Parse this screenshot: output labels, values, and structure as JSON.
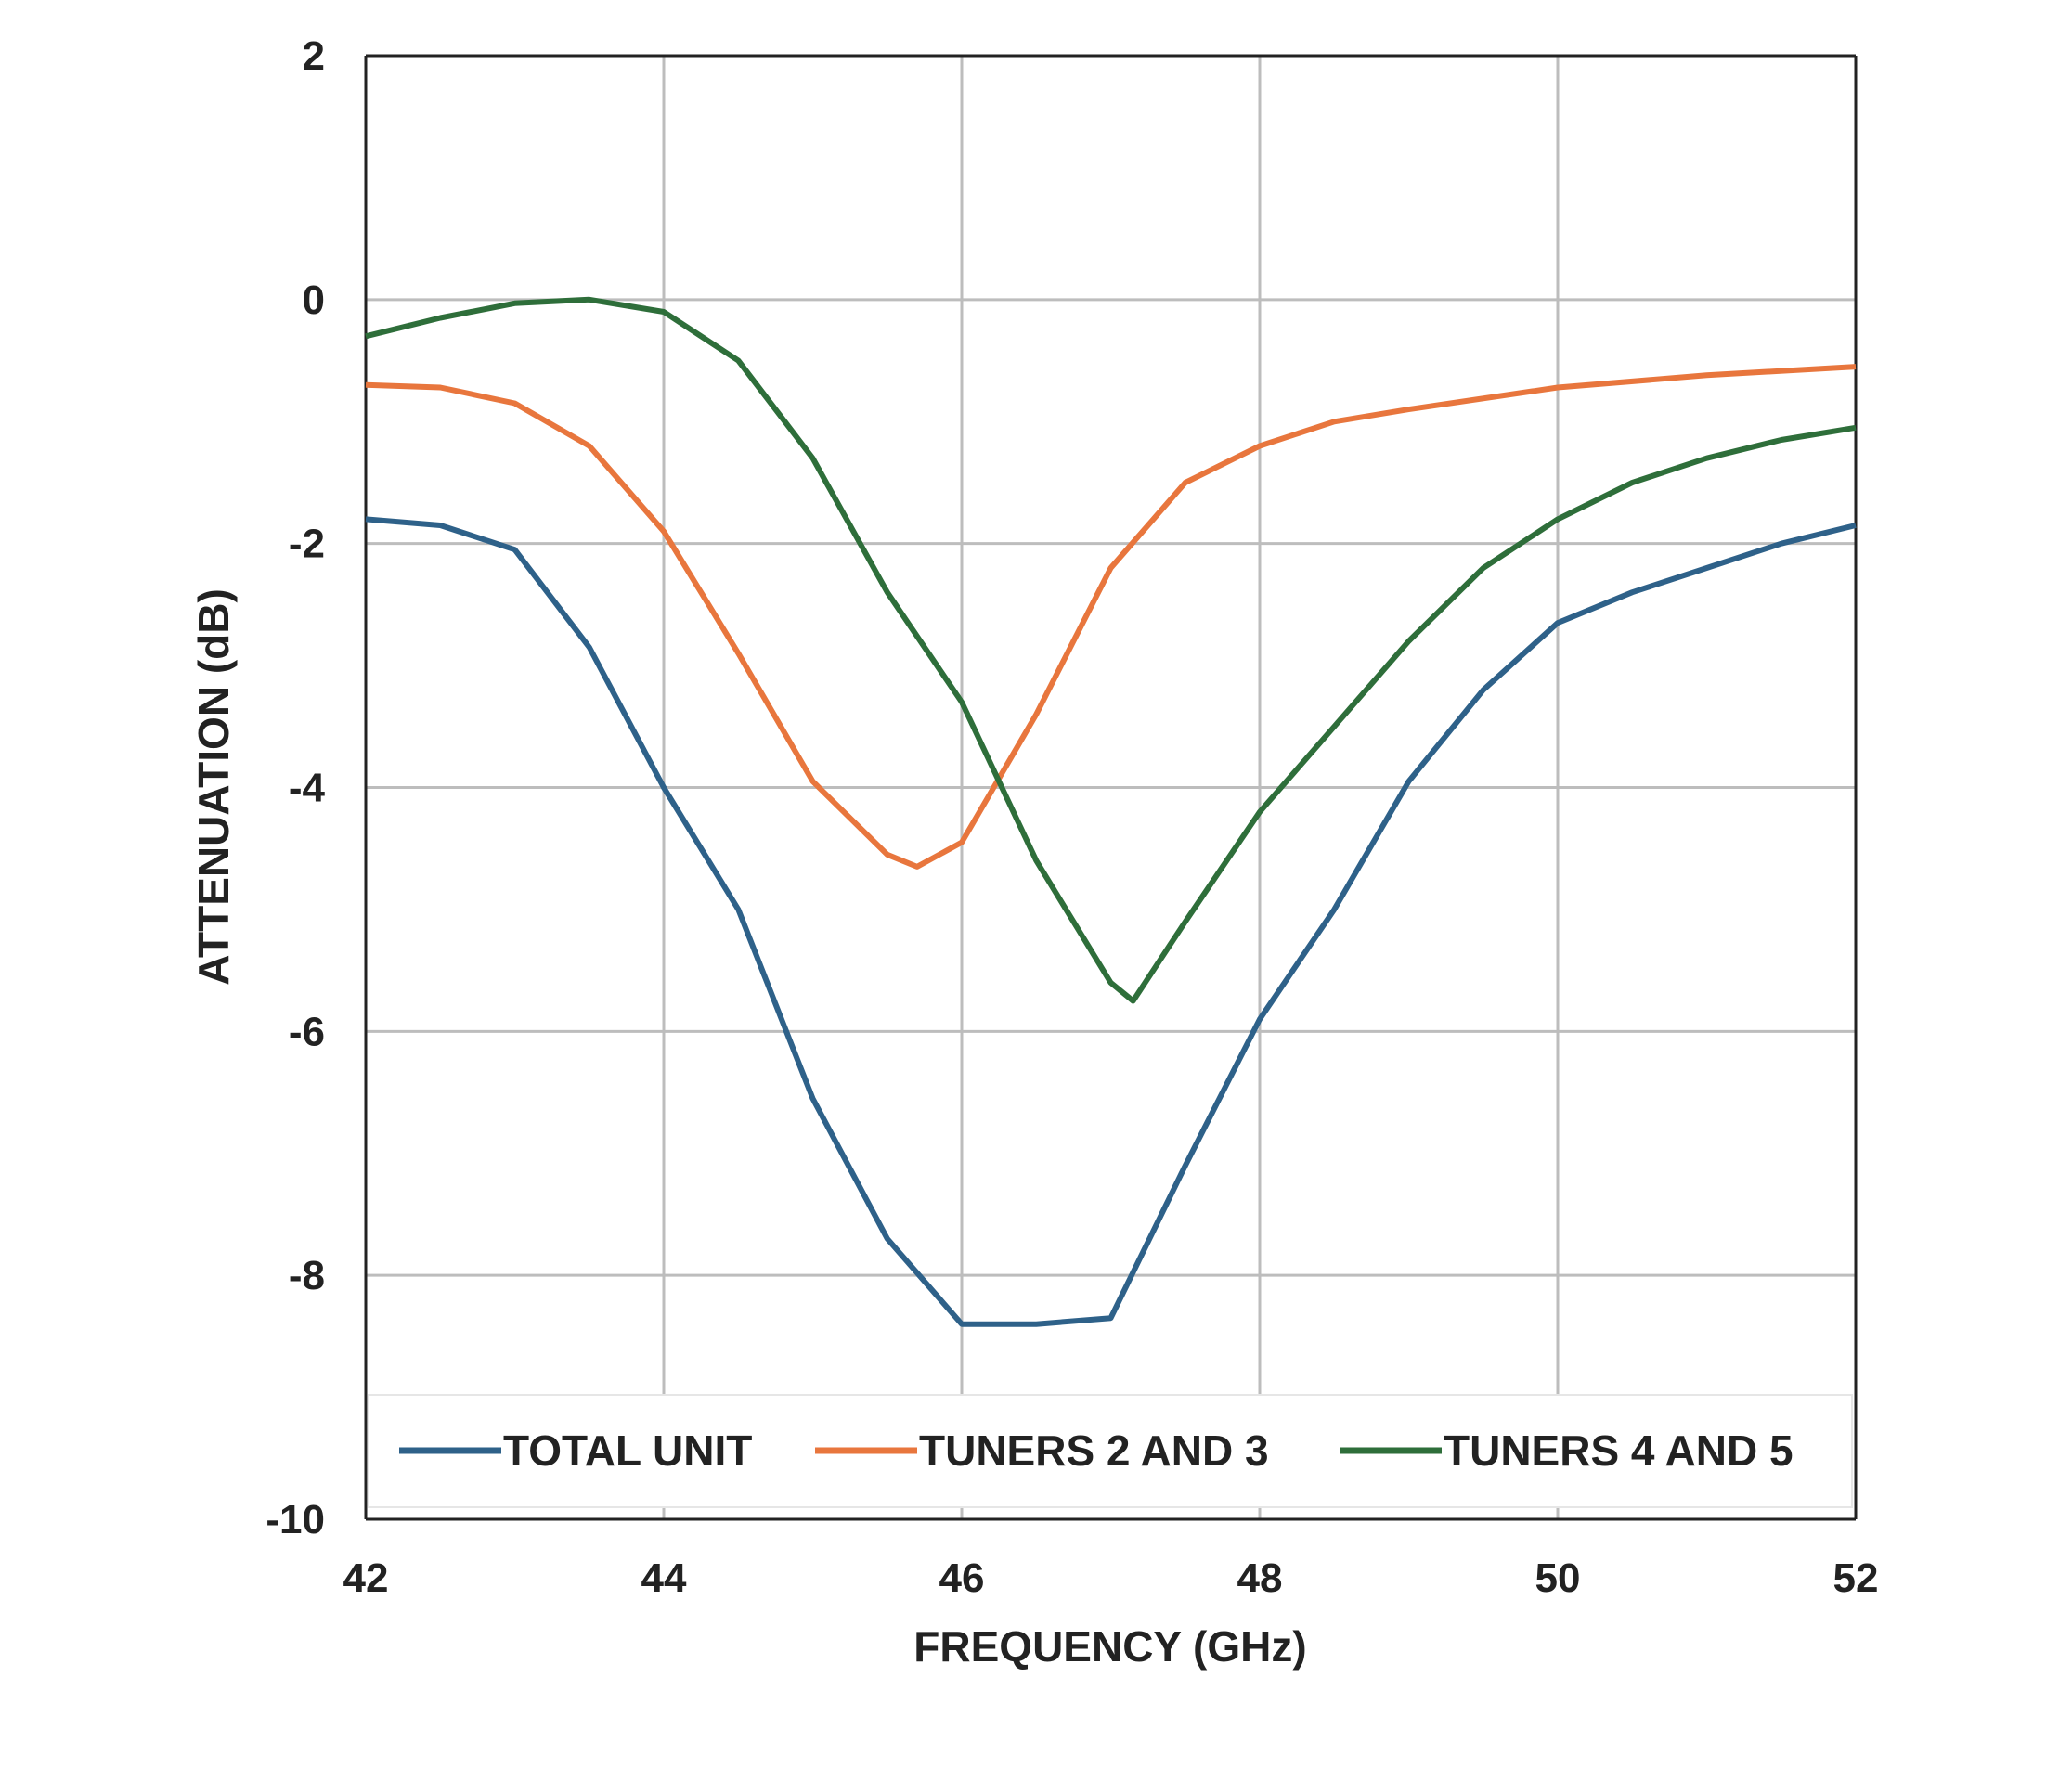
{
  "chart_data": {
    "type": "line",
    "title": "",
    "xlabel": "FREQUENCY (GHz)",
    "ylabel": "ATTENUATION (dB)",
    "xlim": [
      42,
      52
    ],
    "ylim": [
      -10,
      2
    ],
    "xticks": [
      42,
      44,
      46,
      48,
      50,
      52
    ],
    "yticks": [
      2,
      0,
      -2,
      -4,
      -6,
      -8,
      -10
    ],
    "grid": true,
    "legend_position": "bottom-inside",
    "series": [
      {
        "name": "TOTAL UNIT",
        "color": "#2e6189",
        "x": [
          42,
          42.5,
          43,
          43.5,
          44,
          44.5,
          45,
          45.5,
          46,
          46.5,
          47,
          47.5,
          48,
          48.5,
          49,
          49.5,
          50,
          50.5,
          51,
          51.5,
          52
        ],
        "y": [
          -1.8,
          -1.85,
          -2.05,
          -2.85,
          -4.0,
          -5.0,
          -6.55,
          -7.7,
          -8.4,
          -8.4,
          -8.35,
          -7.1,
          -5.9,
          -5.0,
          -3.95,
          -3.2,
          -2.65,
          -2.4,
          -2.2,
          -2.0,
          -1.85
        ]
      },
      {
        "name": "TUNERS 2 AND 3",
        "color": "#e8763d",
        "x": [
          42,
          42.5,
          43,
          43.5,
          44,
          44.5,
          45,
          45.5,
          45.7,
          46,
          46.5,
          47,
          47.5,
          48,
          48.5,
          49,
          50,
          51,
          52
        ],
        "y": [
          -0.7,
          -0.72,
          -0.85,
          -1.2,
          -1.9,
          -2.9,
          -3.95,
          -4.55,
          -4.65,
          -4.45,
          -3.4,
          -2.2,
          -1.5,
          -1.2,
          -1.0,
          -0.9,
          -0.72,
          -0.62,
          -0.55
        ]
      },
      {
        "name": "TUNERS 4 AND 5",
        "color": "#2e6e3a",
        "x": [
          42,
          42.5,
          43,
          43.5,
          44,
          44.5,
          45,
          45.5,
          46,
          46.5,
          47,
          47.15,
          47.5,
          48,
          48.5,
          49,
          49.5,
          50,
          50.5,
          51,
          51.5,
          52
        ],
        "y": [
          -0.3,
          -0.15,
          -0.03,
          0.0,
          -0.1,
          -0.5,
          -1.3,
          -2.4,
          -3.3,
          -4.6,
          -5.6,
          -5.75,
          -5.1,
          -4.2,
          -3.5,
          -2.8,
          -2.2,
          -1.8,
          -1.5,
          -1.3,
          -1.15,
          -1.05
        ]
      }
    ]
  }
}
